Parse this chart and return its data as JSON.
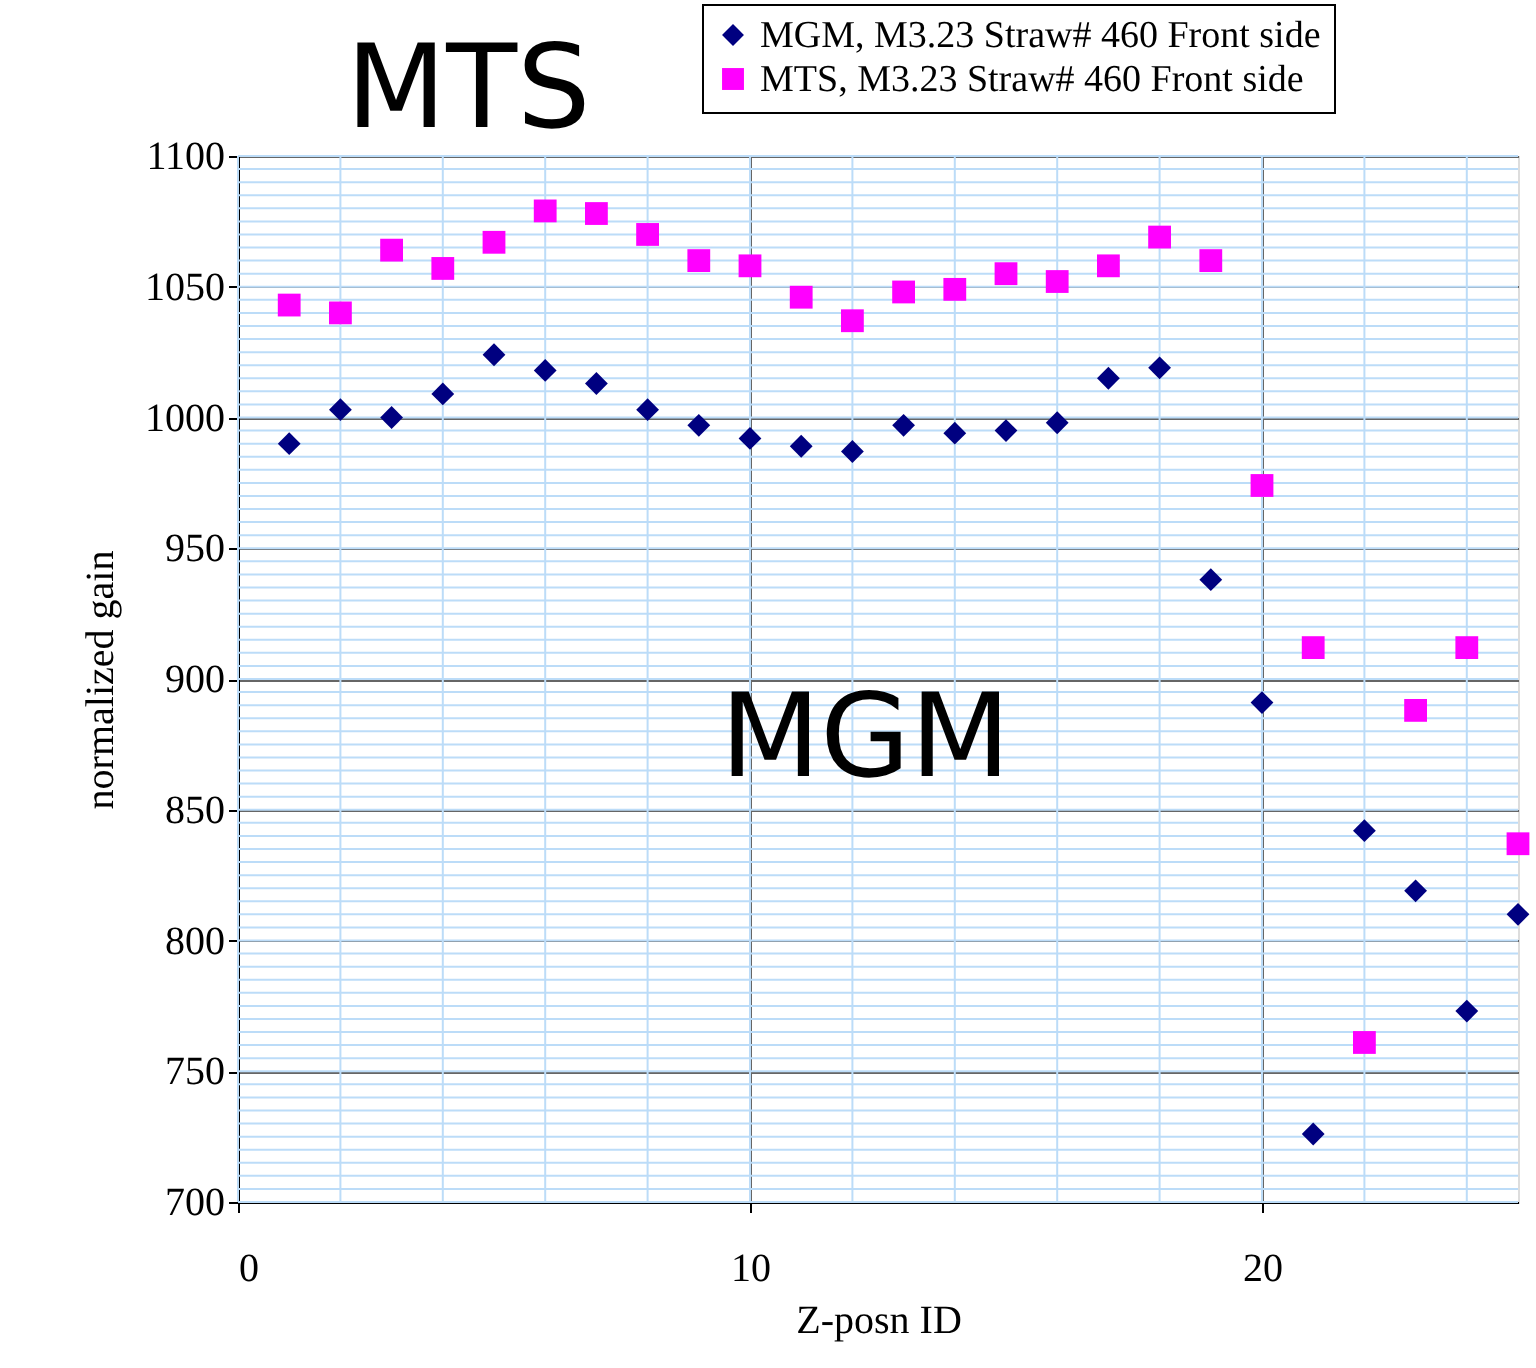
{
  "chart_data": {
    "type": "scatter",
    "xlabel": "Z-posn ID",
    "ylabel": "normalized gain",
    "x": [
      1,
      2,
      3,
      4,
      5,
      6,
      7,
      8,
      9,
      10,
      11,
      12,
      13,
      14,
      15,
      16,
      17,
      18,
      19,
      20,
      21,
      22,
      23,
      24,
      25
    ],
    "series": [
      {
        "name": "MGM, M3.23 Straw# 460 Front side",
        "color": "#000080",
        "marker": "diamond",
        "values": [
          990,
          1003,
          1000,
          1009,
          1024,
          1018,
          1013,
          1003,
          997,
          992,
          989,
          987,
          997,
          994,
          995,
          998,
          1015,
          1019,
          938,
          891,
          726,
          842,
          819,
          773,
          810
        ]
      },
      {
        "name": "MTS, M3.23 Straw# 460 Front side",
        "color": "#ff00ff",
        "marker": "square",
        "values": [
          1043,
          1040,
          1064,
          1057,
          1067,
          1079,
          1078,
          1070,
          1060,
          1058,
          1046,
          1037,
          1048,
          1049,
          1055,
          1052,
          1058,
          1069,
          1060,
          974,
          912,
          761,
          888,
          912,
          837
        ]
      }
    ],
    "annotations": [
      "MTS",
      "MGM"
    ],
    "xlim": [
      0,
      25
    ],
    "xticks": [
      0,
      10,
      20
    ],
    "ylim": [
      700,
      1100
    ],
    "yticks": [
      700,
      750,
      800,
      850,
      900,
      950,
      1000,
      1050,
      1100
    ],
    "grid": true,
    "legend": "top right"
  }
}
